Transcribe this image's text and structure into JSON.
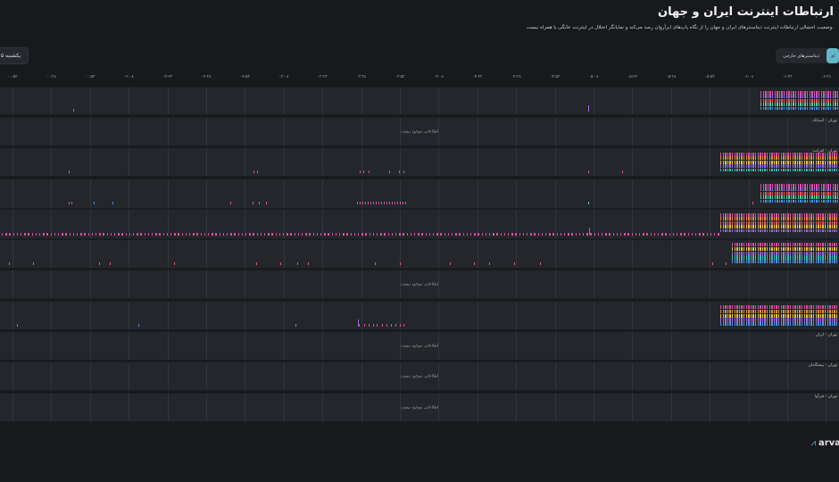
{
  "header": {
    "title": "ارتباطات اینترنت ایران و جهان",
    "subtitle": "وضعیت احتمالی ارتباطات اینترنت دیتاسنترهای ایران و جهان را از نگاه پاپ‌های ابرآروان رصد می‌کند و نمایانگر اختلال در اینترنت خانگی یا همراه نیست."
  },
  "date_button": {
    "label": "یکشنبه ۵"
  },
  "tabs": [
    {
      "label": "دیتاسنترهای خارجی",
      "active": false
    },
    {
      "label": "ای",
      "active": true
    }
  ],
  "time_ticks": [
    "۰۰:۵۳",
    "۰۰:۳۸",
    "۰۰:۵۳",
    "۰۲:۰۸",
    "۰۲:۲۳",
    "۰۲:۳۸",
    "۰۲:۵۳",
    "۰۳:۰۸",
    "۰۳:۲۳",
    "۰۳:۳۸",
    "۰۳:۵۳",
    "۰۴:۰۸",
    "۰۴:۲۳",
    "۰۴:۳۸",
    "۰۴:۵۳",
    "۰۵:۰۸",
    "۰۵:۲۳",
    "۰۵:۳۸",
    "۰۵:۵۳",
    "۰۶:۰۸",
    "۰۶:۲۳",
    "۰۶:۳۸"
  ],
  "colors": {
    "pink": "#d94fa3",
    "purple": "#9a6bd8",
    "blue": "#4a90e2",
    "green": "#4fc9a0",
    "yellow": "#e6c244",
    "red": "#e05a5a",
    "teal": "#3fb5b5",
    "orange": "#e48a3b"
  },
  "rows": [
    {
      "label": "",
      "no_data": ""
    },
    {
      "label": "تهران - آسیاتک",
      "no_data": "اطلاعاتی موجود نیست"
    },
    {
      "label": "تهران - افرانت",
      "no_data": ""
    },
    {
      "label": "",
      "no_data": ""
    },
    {
      "label": "",
      "no_data": ""
    },
    {
      "label": "",
      "no_data": ""
    },
    {
      "label": "",
      "no_data": "اطلاعاتی موجود نیست"
    },
    {
      "label": "",
      "no_data": ""
    },
    {
      "label": "تهران - ایران",
      "no_data": "اطلاعاتی موجود نیست"
    },
    {
      "label": "تهران - پیشگامان",
      "no_data": "اطلاعاتی موجود نیست"
    },
    {
      "label": "تهران - فن‌آوا",
      "no_data": "اطلاعاتی موجود نیست"
    }
  ],
  "logo": {
    "text": "arva"
  }
}
